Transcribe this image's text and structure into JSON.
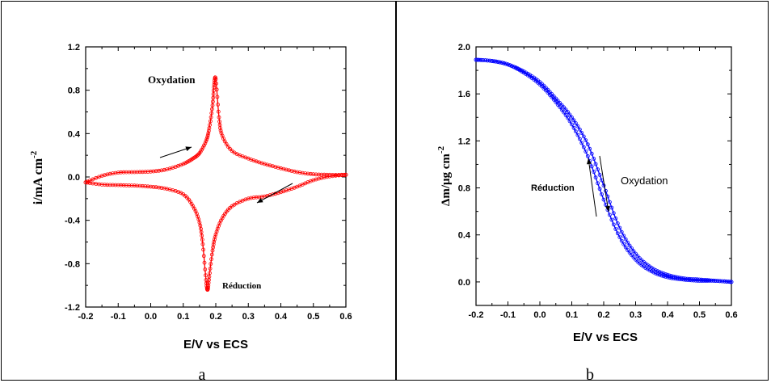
{
  "chart_data": [
    {
      "type": "line",
      "panel_label": "a",
      "xlabel": "E/V vs ECS",
      "ylabel": "i/mA cm",
      "ylabel_superscript": "-2",
      "xlim": [
        -0.2,
        0.6
      ],
      "ylim": [
        -1.2,
        1.2
      ],
      "x_ticks": [
        -0.2,
        -0.1,
        0.0,
        0.1,
        0.2,
        0.3,
        0.4,
        0.5,
        0.6
      ],
      "y_ticks": [
        -1.2,
        -0.8,
        -0.4,
        0.0,
        0.4,
        0.8,
        1.2
      ],
      "x_tick_labels": [
        "-0.2",
        "-0.1",
        "0.0",
        "0.1",
        "0.2",
        "0.3",
        "0.4",
        "0.5",
        "0.6"
      ],
      "y_tick_labels": [
        "-1.2",
        "-0.8",
        "-0.4",
        "0.0",
        "0.4",
        "0.8",
        "1.2"
      ],
      "grid": false,
      "color": "#ff0000",
      "annotations": {
        "oxidation": "Oxydation",
        "reduction": "Réduction"
      },
      "series": [
        {
          "x": [
            -0.2,
            -0.15,
            -0.1,
            -0.05,
            0.0,
            0.05,
            0.1,
            0.13,
            0.15,
            0.17,
            0.18,
            0.19,
            0.195,
            0.2,
            0.21,
            0.22,
            0.25,
            0.3,
            0.35,
            0.4,
            0.45,
            0.5,
            0.55,
            0.6
          ],
          "y": [
            -0.05,
            0.01,
            0.04,
            0.045,
            0.05,
            0.07,
            0.12,
            0.17,
            0.22,
            0.33,
            0.45,
            0.66,
            0.85,
            0.9,
            0.55,
            0.38,
            0.24,
            0.17,
            0.12,
            0.08,
            0.045,
            0.025,
            0.02,
            0.02
          ]
        },
        {
          "x": [
            0.6,
            0.55,
            0.5,
            0.45,
            0.4,
            0.35,
            0.3,
            0.25,
            0.22,
            0.2,
            0.19,
            0.18,
            0.175,
            0.17,
            0.16,
            0.15,
            0.13,
            0.1,
            0.05,
            0.0,
            -0.05,
            -0.1,
            -0.15,
            -0.2
          ],
          "y": [
            0.02,
            0.005,
            -0.03,
            -0.09,
            -0.14,
            -0.18,
            -0.2,
            -0.27,
            -0.38,
            -0.53,
            -0.68,
            -0.92,
            -1.04,
            -0.95,
            -0.62,
            -0.42,
            -0.27,
            -0.16,
            -0.11,
            -0.09,
            -0.08,
            -0.075,
            -0.07,
            -0.05
          ]
        }
      ]
    },
    {
      "type": "line",
      "panel_label": "b",
      "xlabel": "E/V vs ECS",
      "ylabel": "Δm/μg cm",
      "ylabel_superscript": "-2",
      "xlim": [
        -0.2,
        0.6
      ],
      "ylim": [
        -0.2,
        2.0
      ],
      "x_ticks": [
        -0.2,
        -0.1,
        0.0,
        0.1,
        0.2,
        0.3,
        0.4,
        0.5,
        0.6
      ],
      "y_ticks": [
        0.0,
        0.4,
        0.8,
        1.2,
        1.6,
        2.0
      ],
      "x_tick_labels": [
        "-0.2",
        "-0.1",
        "0.0",
        "0.1",
        "0.2",
        "0.3",
        "0.4",
        "0.5",
        "0.6"
      ],
      "y_tick_labels": [
        "0.0",
        "0.4",
        "0.8",
        "1.2",
        "1.6",
        "2.0"
      ],
      "grid": false,
      "color": "#0000ff",
      "annotations": {
        "oxidation": "Oxydation",
        "reduction": "Réduction"
      },
      "series": [
        {
          "x": [
            -0.2,
            -0.15,
            -0.1,
            -0.05,
            0.0,
            0.05,
            0.1,
            0.15,
            0.2,
            0.25,
            0.3,
            0.35,
            0.4,
            0.45,
            0.5,
            0.55,
            0.6
          ],
          "y": [
            1.89,
            1.88,
            1.85,
            1.78,
            1.68,
            1.53,
            1.34,
            1.07,
            0.7,
            0.38,
            0.19,
            0.09,
            0.04,
            0.02,
            0.01,
            0.01,
            0.0
          ]
        },
        {
          "x": [
            0.6,
            0.55,
            0.5,
            0.45,
            0.4,
            0.35,
            0.3,
            0.25,
            0.2,
            0.15,
            0.1,
            0.05,
            0.0,
            -0.05,
            -0.1,
            -0.15,
            -0.2
          ],
          "y": [
            0.0,
            0.01,
            0.02,
            0.03,
            0.06,
            0.12,
            0.24,
            0.46,
            0.82,
            1.17,
            1.4,
            1.56,
            1.7,
            1.79,
            1.85,
            1.88,
            1.89
          ]
        }
      ]
    }
  ]
}
